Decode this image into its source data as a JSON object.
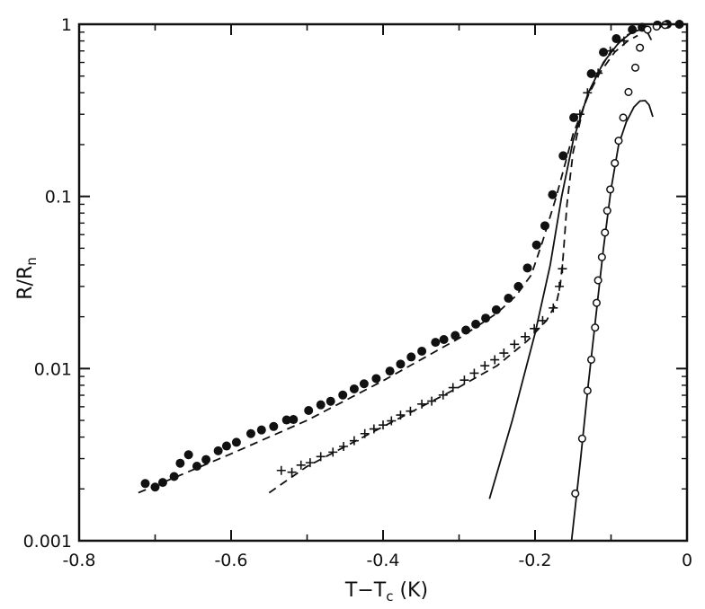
{
  "chart_data": {
    "type": "scatter",
    "title": "",
    "xlabel": "T−T",
    "xlabel_sub": "c",
    "xlabel_unit": " (K)",
    "ylabel": "R/R",
    "ylabel_sub": "n",
    "xlim": [
      -0.8,
      0.0
    ],
    "ylim": [
      0.001,
      1
    ],
    "yscale": "log",
    "grid": false,
    "x_ticks": [
      {
        "value": -0.8,
        "label": "-0.8"
      },
      {
        "value": -0.6,
        "label": "-0.6"
      },
      {
        "value": -0.4,
        "label": "-0.4"
      },
      {
        "value": -0.2,
        "label": "-0.2"
      },
      {
        "value": 0.0,
        "label": "0"
      }
    ],
    "y_ticks": [
      {
        "value": 0.001,
        "label": "0.001"
      },
      {
        "value": 0.01,
        "label": "0.01"
      },
      {
        "value": 0.1,
        "label": "0.1"
      },
      {
        "value": 1,
        "label": "1"
      }
    ],
    "series": [
      {
        "marker": "filled-circle",
        "points": [
          [
            -0.713,
            0.00215
          ],
          [
            -0.7,
            0.00205
          ],
          [
            -0.69,
            0.00218
          ],
          [
            -0.675,
            0.00236
          ],
          [
            -0.667,
            0.00282
          ],
          [
            -0.656,
            0.00316
          ],
          [
            -0.645,
            0.00271
          ],
          [
            -0.633,
            0.00296
          ],
          [
            -0.617,
            0.00333
          ],
          [
            -0.606,
            0.00355
          ],
          [
            -0.593,
            0.00373
          ],
          [
            -0.574,
            0.00419
          ],
          [
            -0.56,
            0.0044
          ],
          [
            -0.544,
            0.00461
          ],
          [
            -0.527,
            0.00503
          ],
          [
            -0.518,
            0.00506
          ],
          [
            -0.498,
            0.00571
          ],
          [
            -0.482,
            0.00616
          ],
          [
            -0.469,
            0.00646
          ],
          [
            -0.453,
            0.00702
          ],
          [
            -0.438,
            0.00762
          ],
          [
            -0.425,
            0.00816
          ],
          [
            -0.409,
            0.00875
          ],
          [
            -0.391,
            0.00967
          ],
          [
            -0.377,
            0.01062
          ],
          [
            -0.363,
            0.01168
          ],
          [
            -0.349,
            0.01262
          ],
          [
            -0.331,
            0.0142
          ],
          [
            -0.32,
            0.01475
          ],
          [
            -0.305,
            0.01556
          ],
          [
            -0.291,
            0.01673
          ],
          [
            -0.278,
            0.01812
          ],
          [
            -0.265,
            0.01963
          ],
          [
            -0.251,
            0.02194
          ],
          [
            -0.235,
            0.02561
          ],
          [
            -0.222,
            0.03
          ],
          [
            -0.21,
            0.0384
          ],
          [
            -0.198,
            0.05222
          ],
          [
            -0.187,
            0.06755
          ],
          [
            -0.177,
            0.1024
          ],
          [
            -0.163,
            0.1722
          ],
          [
            -0.149,
            0.2869
          ],
          [
            -0.126,
            0.5164
          ],
          [
            -0.11,
            0.6881
          ],
          [
            -0.093,
            0.8248
          ],
          [
            -0.072,
            0.9302
          ],
          [
            -0.059,
            0.9597
          ],
          [
            -0.039,
            0.99
          ],
          [
            -0.026,
            1.0
          ],
          [
            -0.01,
            1.0
          ]
        ]
      },
      {
        "marker": "plus",
        "points": [
          [
            -0.534,
            0.00256
          ],
          [
            -0.52,
            0.0025
          ],
          [
            -0.508,
            0.00275
          ],
          [
            -0.496,
            0.00284
          ],
          [
            -0.482,
            0.00308
          ],
          [
            -0.466,
            0.00327
          ],
          [
            -0.452,
            0.00353
          ],
          [
            -0.438,
            0.00381
          ],
          [
            -0.424,
            0.00419
          ],
          [
            -0.412,
            0.00446
          ],
          [
            -0.4,
            0.0047
          ],
          [
            -0.389,
            0.00497
          ],
          [
            -0.377,
            0.00537
          ],
          [
            -0.364,
            0.00566
          ],
          [
            -0.349,
            0.00622
          ],
          [
            -0.336,
            0.00647
          ],
          [
            -0.321,
            0.00702
          ],
          [
            -0.308,
            0.00775
          ],
          [
            -0.293,
            0.00857
          ],
          [
            -0.28,
            0.0094
          ],
          [
            -0.266,
            0.01039
          ],
          [
            -0.253,
            0.01125
          ],
          [
            -0.241,
            0.01231
          ],
          [
            -0.227,
            0.01383
          ],
          [
            -0.213,
            0.01532
          ],
          [
            -0.201,
            0.01708
          ],
          [
            -0.19,
            0.019
          ],
          [
            -0.176,
            0.0225
          ],
          [
            -0.168,
            0.03
          ],
          [
            -0.164,
            0.038
          ],
          [
            -0.141,
            0.3
          ],
          [
            -0.131,
            0.4
          ],
          [
            -0.117,
            0.52
          ],
          [
            -0.101,
            0.7
          ],
          [
            -0.083,
            0.8
          ]
        ]
      },
      {
        "marker": "open-circle",
        "points": [
          [
            -0.147,
            0.00188
          ],
          [
            -0.138,
            0.00392
          ],
          [
            -0.131,
            0.00744
          ],
          [
            -0.126,
            0.01126
          ],
          [
            -0.121,
            0.01731
          ],
          [
            -0.119,
            0.02408
          ],
          [
            -0.117,
            0.03255
          ],
          [
            -0.112,
            0.04438
          ],
          [
            -0.108,
            0.06164
          ],
          [
            -0.105,
            0.08264
          ],
          [
            -0.101,
            0.1098
          ],
          [
            -0.095,
            0.1561
          ],
          [
            -0.09,
            0.2106
          ],
          [
            -0.084,
            0.2868
          ],
          [
            -0.077,
            0.404
          ],
          [
            -0.068,
            0.5596
          ],
          [
            -0.062,
            0.7306
          ],
          [
            -0.052,
            0.9302
          ],
          [
            -0.04,
            0.97
          ],
          [
            -0.029,
            0.99
          ]
        ]
      }
    ],
    "fit_curves": [
      {
        "style": "dashed",
        "points": [
          [
            -0.722,
            0.0019
          ],
          [
            -0.6,
            0.0032
          ],
          [
            -0.5,
            0.005
          ],
          [
            -0.4,
            0.0085
          ],
          [
            -0.3,
            0.015
          ],
          [
            -0.25,
            0.021
          ],
          [
            -0.225,
            0.0265
          ],
          [
            -0.205,
            0.035
          ],
          [
            -0.19,
            0.055
          ],
          [
            -0.172,
            0.1
          ],
          [
            -0.15,
            0.23
          ],
          [
            -0.12,
            0.5
          ],
          [
            -0.1,
            0.7
          ],
          [
            -0.08,
            0.86
          ],
          [
            -0.06,
            0.95
          ]
        ]
      },
      {
        "style": "dashed",
        "points": [
          [
            -0.55,
            0.0019
          ],
          [
            -0.5,
            0.0027
          ],
          [
            -0.4,
            0.0046
          ],
          [
            -0.3,
            0.0078
          ],
          [
            -0.25,
            0.0104
          ],
          [
            -0.21,
            0.0145
          ],
          [
            -0.185,
            0.019
          ],
          [
            -0.172,
            0.024
          ],
          [
            -0.167,
            0.03
          ],
          [
            -0.163,
            0.045
          ],
          [
            -0.158,
            0.09
          ],
          [
            -0.15,
            0.18
          ],
          [
            -0.135,
            0.35
          ],
          [
            -0.115,
            0.52
          ],
          [
            -0.095,
            0.69
          ],
          [
            -0.078,
            0.8
          ],
          [
            -0.065,
            0.86
          ]
        ]
      },
      {
        "style": "solid",
        "points": [
          [
            -0.26,
            0.00175
          ],
          [
            -0.23,
            0.005
          ],
          [
            -0.2,
            0.016
          ],
          [
            -0.18,
            0.04
          ],
          [
            -0.165,
            0.1
          ],
          [
            -0.15,
            0.21
          ],
          [
            -0.13,
            0.4
          ],
          [
            -0.11,
            0.6
          ],
          [
            -0.09,
            0.78
          ],
          [
            -0.075,
            0.88
          ],
          [
            -0.065,
            0.92
          ],
          [
            -0.057,
            0.93
          ],
          [
            -0.051,
            0.88
          ],
          [
            -0.047,
            0.81
          ]
        ]
      },
      {
        "style": "solid",
        "points": [
          [
            -0.152,
            0.001
          ],
          [
            -0.14,
            0.003
          ],
          [
            -0.13,
            0.008
          ],
          [
            -0.12,
            0.02
          ],
          [
            -0.11,
            0.05
          ],
          [
            -0.1,
            0.11
          ],
          [
            -0.09,
            0.2
          ],
          [
            -0.08,
            0.27
          ],
          [
            -0.07,
            0.33
          ],
          [
            -0.062,
            0.358
          ],
          [
            -0.055,
            0.36
          ],
          [
            -0.05,
            0.34
          ],
          [
            -0.045,
            0.29
          ]
        ]
      }
    ]
  }
}
